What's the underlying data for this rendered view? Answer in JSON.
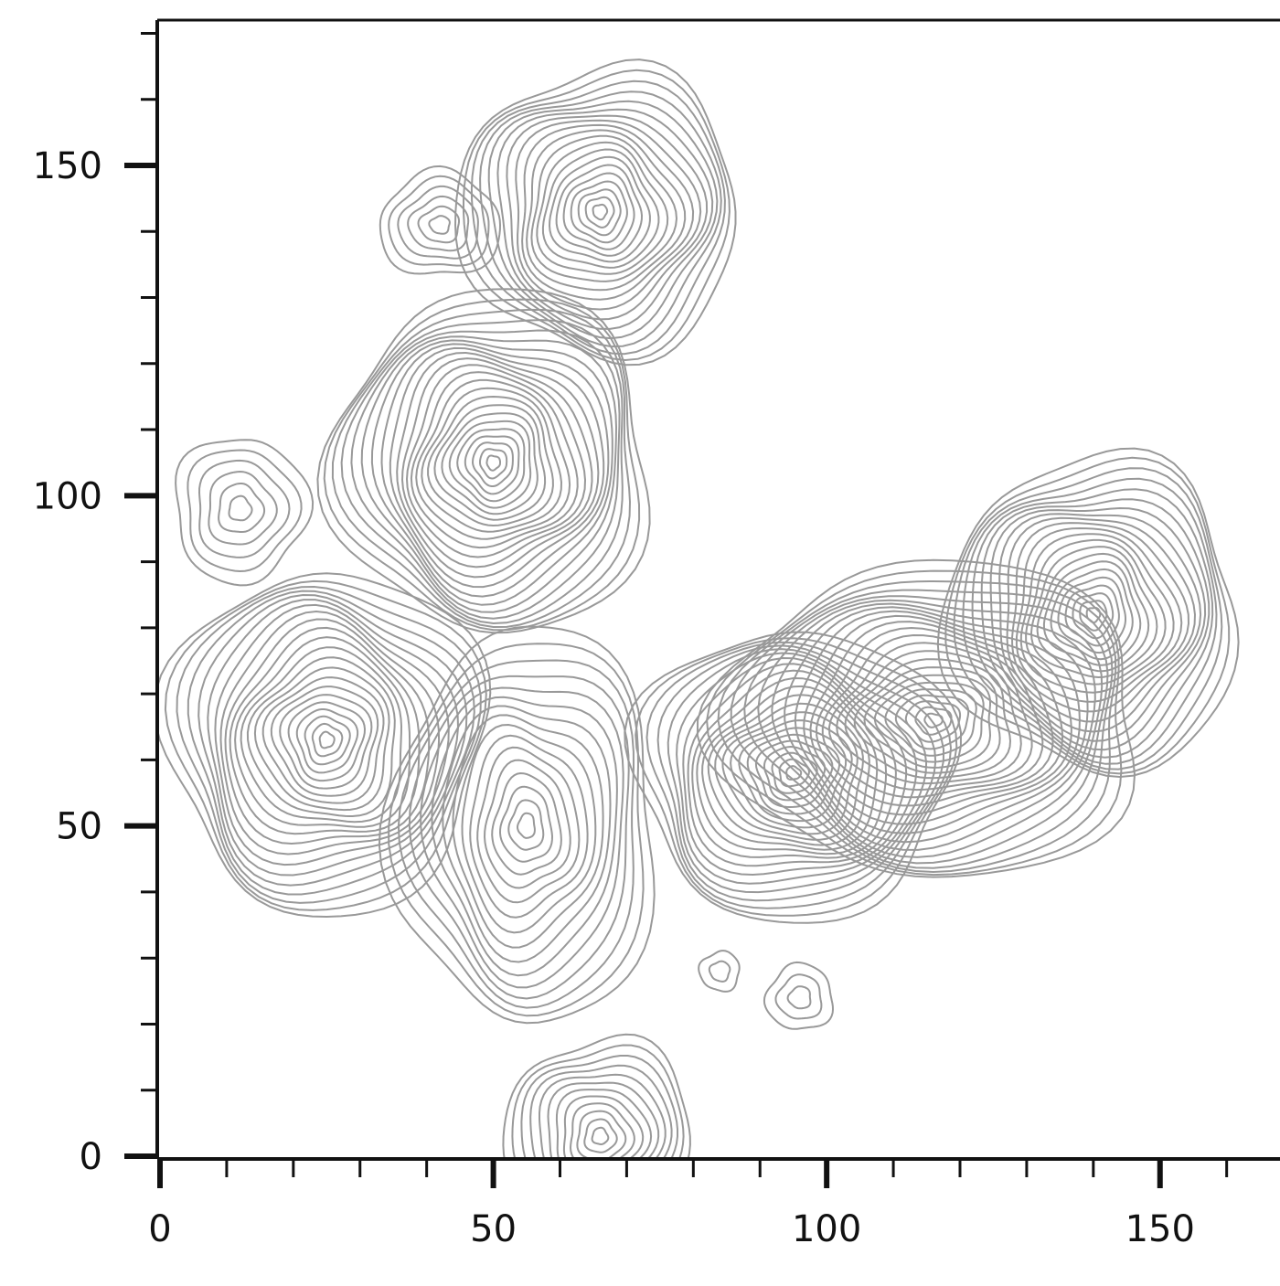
{
  "chart_data": {
    "type": "contour",
    "xlim": [
      0,
      168
    ],
    "ylim": [
      0,
      172
    ],
    "xticks": [
      0,
      50,
      100,
      150
    ],
    "yticks": [
      0,
      50,
      100,
      150
    ],
    "xminor": [
      10,
      20,
      30,
      40,
      60,
      70,
      80,
      90,
      110,
      120,
      130,
      140,
      160
    ],
    "yminor": [
      10,
      20,
      30,
      40,
      60,
      70,
      80,
      90,
      110,
      120,
      130,
      140,
      160,
      170
    ],
    "color": "#999999",
    "peaks": [
      {
        "x": 12,
        "y": 98,
        "rx": 10,
        "ry": 11,
        "levels": 6
      },
      {
        "x": 25,
        "y": 63,
        "rx": 24,
        "ry": 26,
        "levels": 22
      },
      {
        "x": 50,
        "y": 105,
        "rx": 24,
        "ry": 26,
        "levels": 24
      },
      {
        "x": 66,
        "y": 143,
        "rx": 21,
        "ry": 22,
        "levels": 20
      },
      {
        "x": 42,
        "y": 141,
        "rx": 9,
        "ry": 8,
        "levels": 6
      },
      {
        "x": 55,
        "y": 50,
        "rx": 20,
        "ry": 30,
        "levels": 16
      },
      {
        "x": 66,
        "y": 3,
        "rx": 14,
        "ry": 15,
        "levels": 12
      },
      {
        "x": 95,
        "y": 58,
        "rx": 24,
        "ry": 22,
        "levels": 22
      },
      {
        "x": 116,
        "y": 66,
        "rx": 32,
        "ry": 24,
        "levels": 24
      },
      {
        "x": 140,
        "y": 82,
        "rx": 22,
        "ry": 24,
        "levels": 22
      },
      {
        "x": 84,
        "y": 28,
        "rx": 3,
        "ry": 3,
        "levels": 2
      },
      {
        "x": 96,
        "y": 24,
        "rx": 5,
        "ry": 5,
        "levels": 3
      }
    ]
  }
}
